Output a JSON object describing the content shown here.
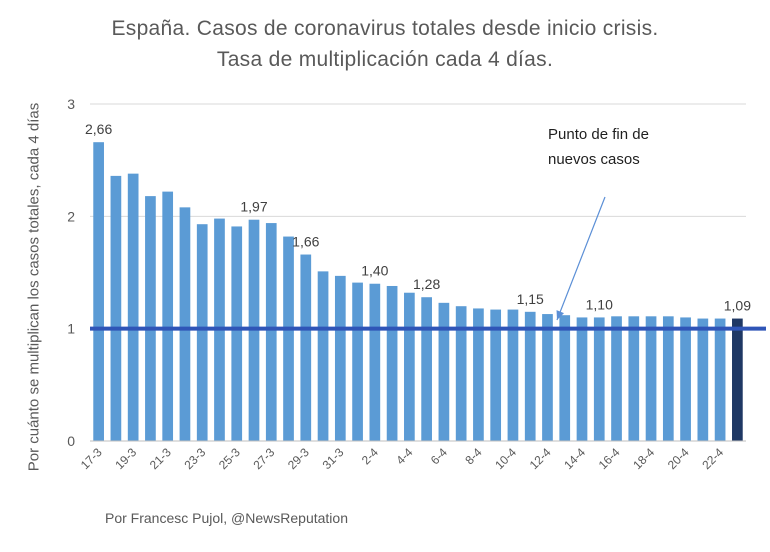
{
  "chart_data": {
    "type": "bar",
    "title": "España. Casos de coronavirus totales desde inicio crisis.",
    "subtitle": "Tasa de multiplicación cada 4 días.",
    "xlabel": "",
    "ylabel": "Por cuánto se multiplican los casos totales, cada 4 días",
    "ylim": [
      0,
      3
    ],
    "yticks": [
      "0",
      "1",
      "2",
      "3"
    ],
    "grid": true,
    "categories": [
      "17-3",
      "18-3",
      "19-3",
      "20-3",
      "21-3",
      "22-3",
      "23-3",
      "24-3",
      "25-3",
      "26-3",
      "27-3",
      "28-3",
      "29-3",
      "30-3",
      "31-3",
      "1-4",
      "2-4",
      "3-4",
      "4-4",
      "5-4",
      "6-4",
      "7-4",
      "8-4",
      "9-4",
      "10-4",
      "11-4",
      "12-4",
      "13-4",
      "14-4",
      "15-4",
      "16-4",
      "17-4",
      "18-4",
      "19-4",
      "20-4",
      "21-4",
      "22-4",
      "23-4"
    ],
    "xtick_labels_shown": [
      "17-3",
      "19-3",
      "21-3",
      "23-3",
      "25-3",
      "27-3",
      "29-3",
      "31-3",
      "2-4",
      "4-4",
      "6-4",
      "8-4",
      "10-4",
      "12-4",
      "14-4",
      "16-4",
      "18-4",
      "20-4",
      "22-4"
    ],
    "values": [
      2.66,
      2.36,
      2.38,
      2.18,
      2.22,
      2.08,
      1.93,
      1.98,
      1.91,
      1.97,
      1.94,
      1.82,
      1.66,
      1.51,
      1.47,
      1.41,
      1.4,
      1.38,
      1.32,
      1.28,
      1.23,
      1.2,
      1.18,
      1.17,
      1.17,
      1.15,
      1.13,
      1.12,
      1.1,
      1.1,
      1.11,
      1.11,
      1.11,
      1.11,
      1.1,
      1.09,
      1.09,
      1.09
    ],
    "data_labels": [
      {
        "index": 0,
        "text": "2,66"
      },
      {
        "index": 9,
        "text": "1,97"
      },
      {
        "index": 12,
        "text": "1,66"
      },
      {
        "index": 16,
        "text": "1,40"
      },
      {
        "index": 19,
        "text": "1,28"
      },
      {
        "index": 25,
        "text": "1,15"
      },
      {
        "index": 29,
        "text": "1,10"
      },
      {
        "index": 37,
        "text": "1,09"
      }
    ],
    "bar_color": "#5b9bd5",
    "highlight_index": 37,
    "highlight_color": "#1f3864",
    "reference_line": {
      "value": 1,
      "color": "#2f55b7"
    },
    "annotation": {
      "line1": "Punto de fin de",
      "line2": "nuevos casos",
      "arrow_color": "#5b8fd6"
    }
  },
  "credit": "Por Francesc Pujol, @NewsReputation"
}
